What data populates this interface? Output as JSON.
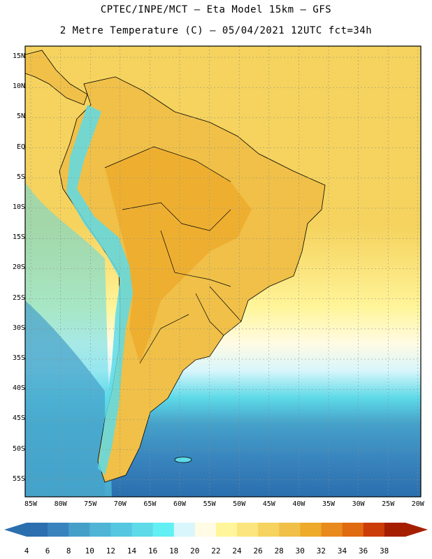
{
  "title_line1": "CPTEC/INPE/MCT –  Eta Model 15km – GFS",
  "title_line2": "2 Metre Temperature (C) – 05/04/2021 12UTC fct=34h",
  "lat_labels": [
    "15N",
    "10N",
    "5N",
    "EQ",
    "5S",
    "10S",
    "15S",
    "20S",
    "25S",
    "30S",
    "35S",
    "40S",
    "45S",
    "50S",
    "55S"
  ],
  "lon_labels": [
    "85W",
    "80W",
    "75W",
    "70W",
    "65W",
    "60W",
    "55W",
    "50W",
    "45W",
    "40W",
    "35W",
    "30W",
    "25W",
    "20W"
  ],
  "colorbar": {
    "labels": [
      "4",
      "6",
      "8",
      "10",
      "12",
      "14",
      "16",
      "18",
      "20",
      "22",
      "24",
      "26",
      "28",
      "30",
      "32",
      "34",
      "36",
      "38"
    ],
    "colors": [
      "#2b6fae",
      "#3883bd",
      "#45a0c9",
      "#4fb4d6",
      "#56c7e0",
      "#5edae8",
      "#62f0f5",
      "#d8f6fb",
      "#fffbe4",
      "#fff59a",
      "#fbe57e",
      "#f5d35e",
      "#f0c048",
      "#eeaa2a",
      "#e88a1e",
      "#e06a10",
      "#cc3c08",
      "#a61e00"
    ]
  },
  "map_regions": {
    "ocean_tropical": "#f5d35e",
    "land_hot": "#f0c048",
    "andes_cold": "#5edae8",
    "south_ocean": "#3883bd",
    "deep_south": "#2b6fae"
  }
}
